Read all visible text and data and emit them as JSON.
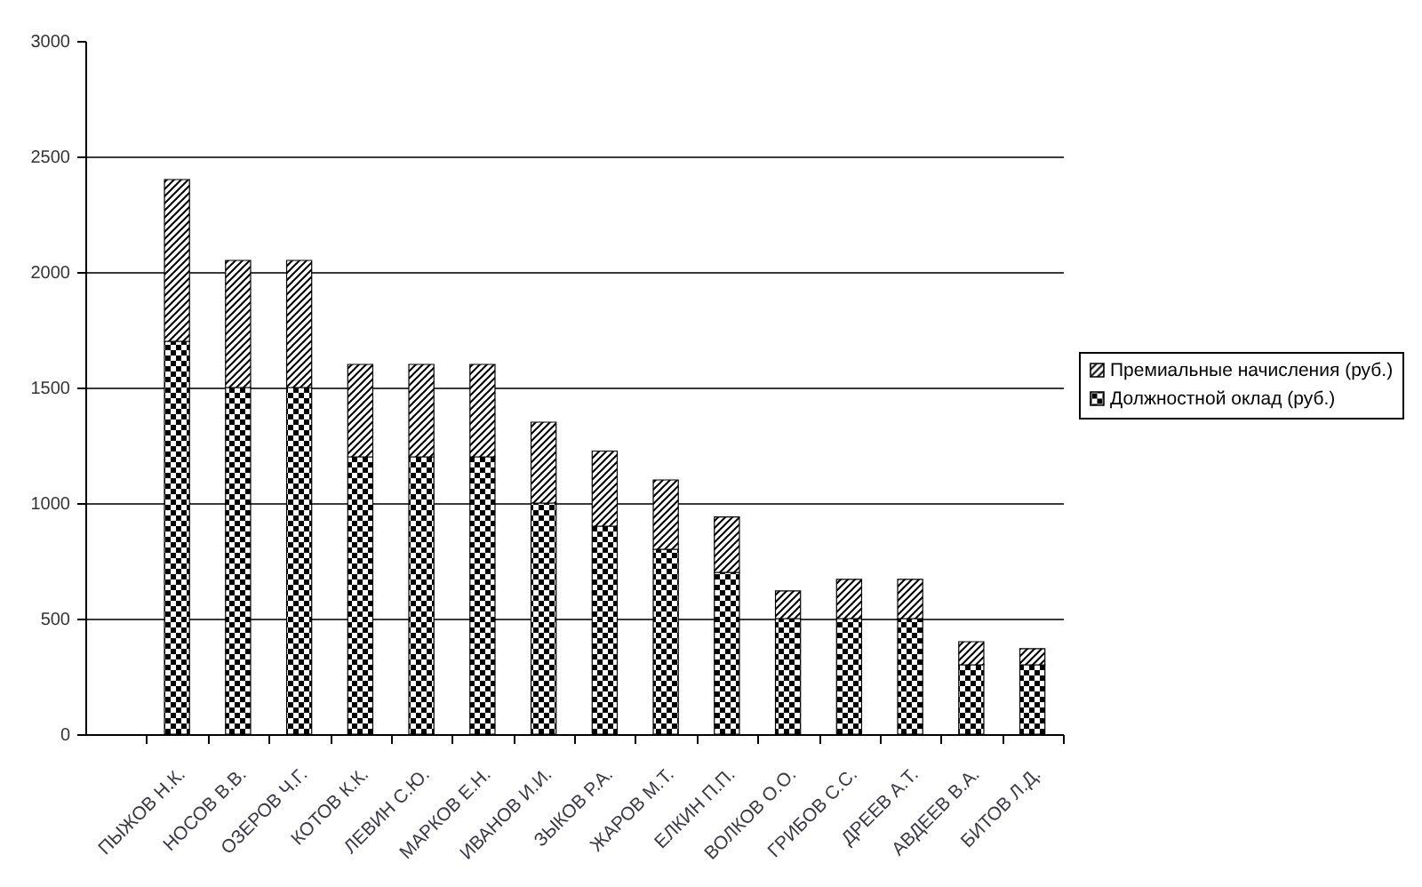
{
  "chart_data": {
    "type": "bar",
    "stacked": true,
    "categories": [
      null,
      "ПЫЖОВ Н.К.",
      "НОСОВ В.В.",
      "ОЗЕРОВ Ч.Г.",
      "КОТОВ К.К.",
      "ЛЕВИН С.Ю.",
      "МАРКОВ Е.Н.",
      "ИВАНОВ И.И.",
      "ЗЫКОВ Р.А.",
      "ЖАРОВ М.Т.",
      "ЕЛКИН П.П.",
      "ВОЛКОВ О.О.",
      "ГРИБОВ С.С.",
      "ДРЕЕВ А.Т.",
      "АВДЕЕВ В.А.",
      "БИТОВ Л.Д."
    ],
    "series": [
      {
        "name": "Должностной оклад (руб.)",
        "color": "#000000",
        "values": [
          null,
          1700,
          1500,
          1500,
          1200,
          1200,
          1200,
          1000,
          900,
          800,
          700,
          500,
          500,
          500,
          300,
          300
        ]
      },
      {
        "name": "Премиальные начисления (руб.)",
        "color": "#000000",
        "values": [
          null,
          700,
          550,
          550,
          400,
          400,
          400,
          350,
          325,
          300,
          240,
          120,
          170,
          170,
          100,
          70
        ]
      }
    ],
    "ylim": [
      0,
      3000
    ],
    "yticks": [
      0,
      500,
      1000,
      1500,
      2000,
      2500,
      3000
    ],
    "grid": "y",
    "legend": "right"
  }
}
